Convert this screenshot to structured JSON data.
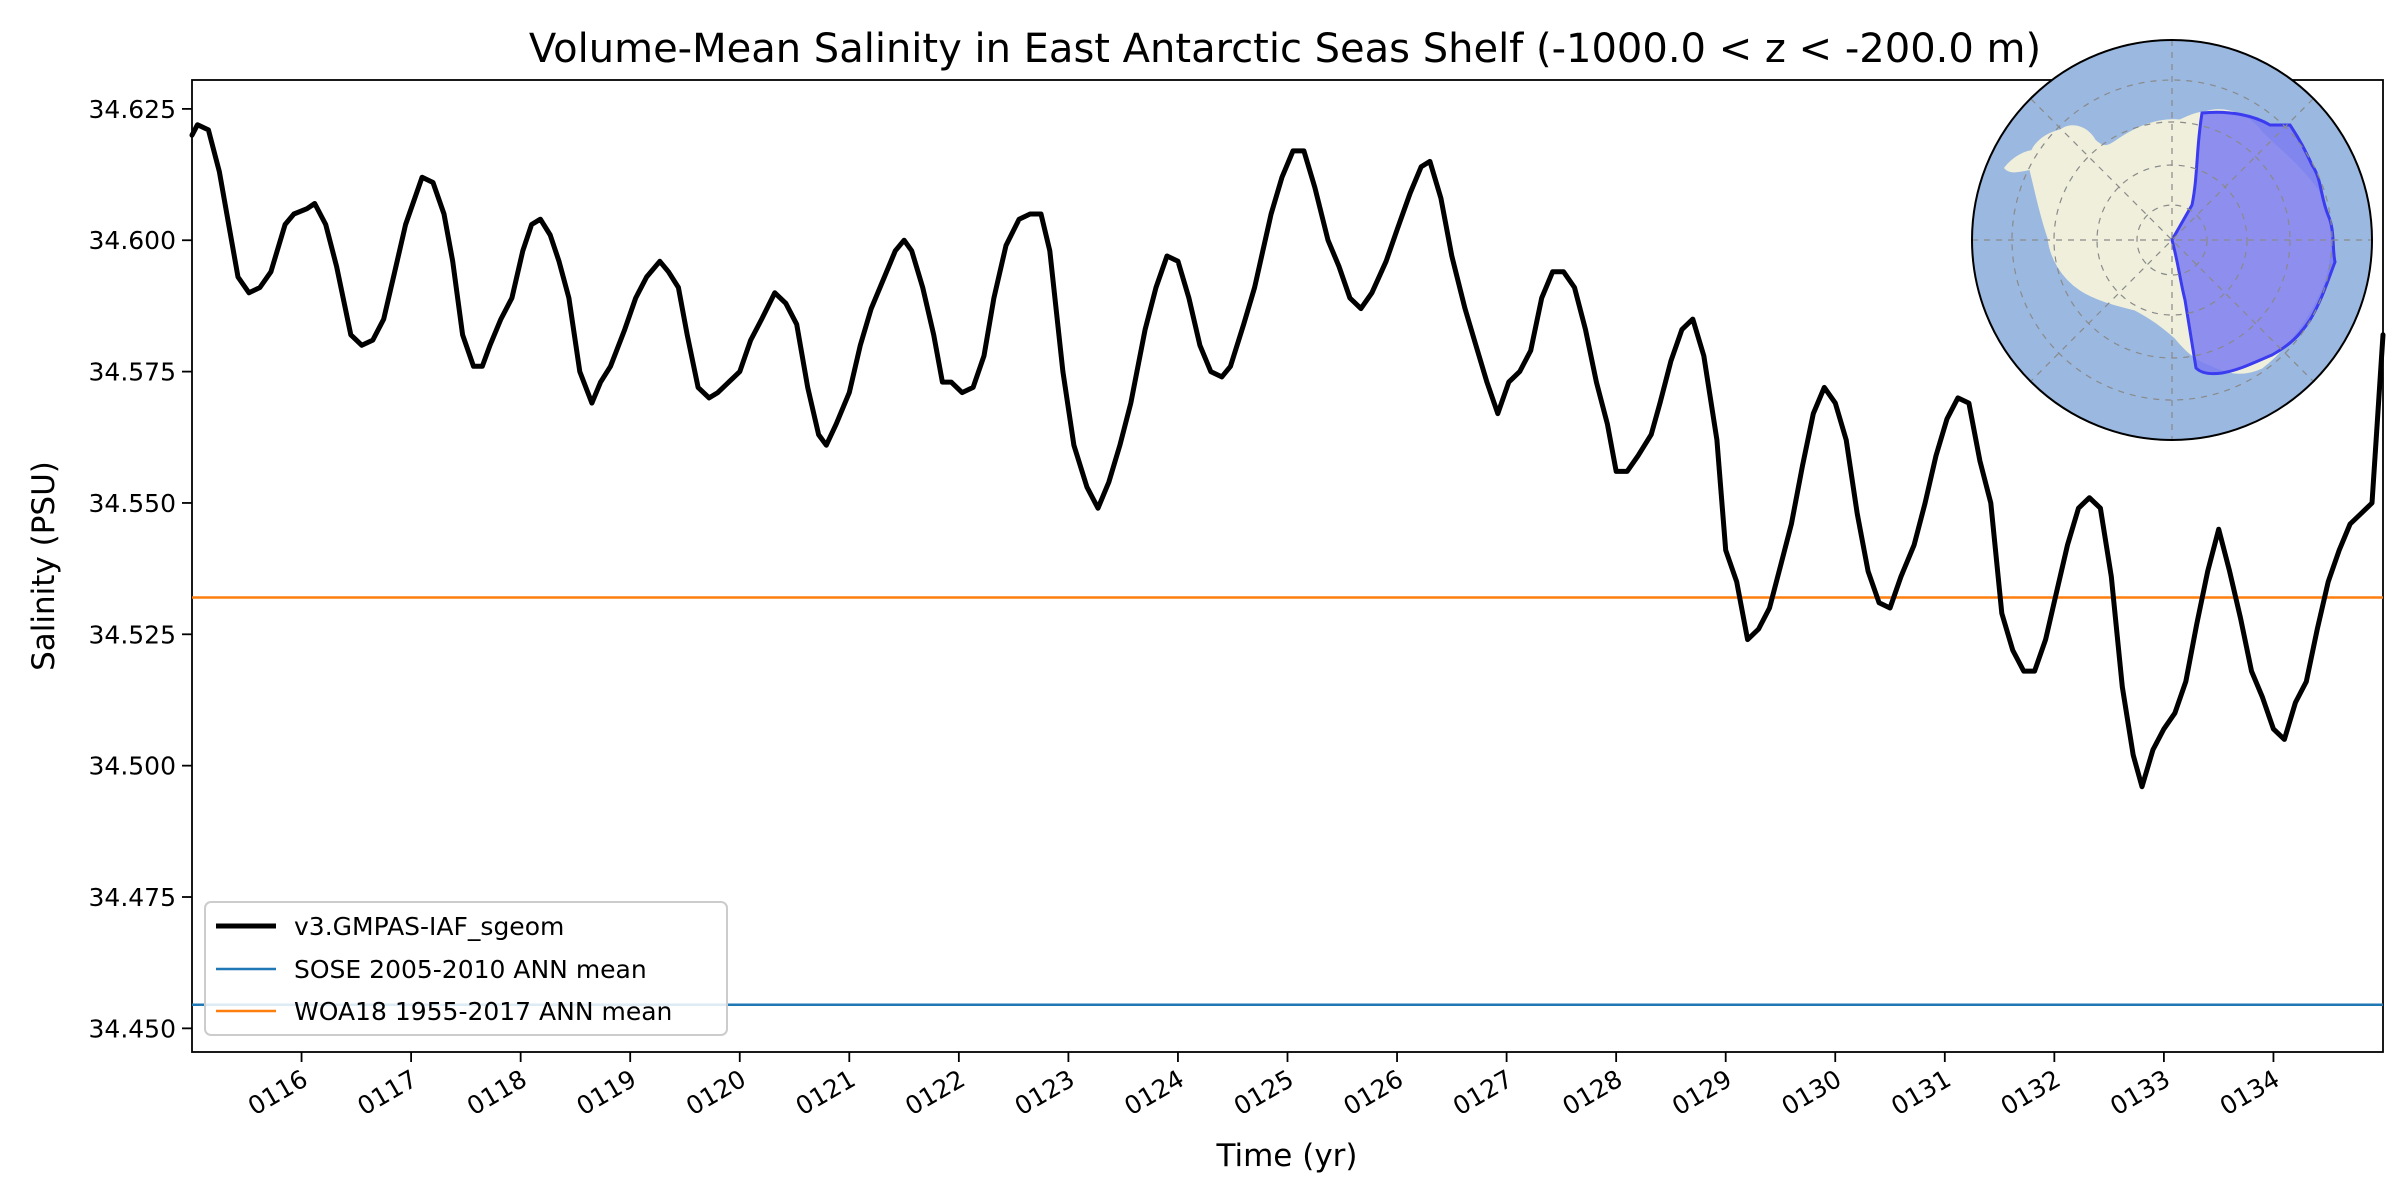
{
  "chart_data": {
    "type": "line",
    "title": "Volume-Mean Salinity in East Antarctic Seas Shelf (-1000.0 < z < -200.0 m)",
    "xlabel": "Time (yr)",
    "ylabel": "Salinity (PSU)",
    "xlim": [
      115.0,
      135.0
    ],
    "ylim": [
      34.4455,
      34.6305
    ],
    "x_ticks": [
      116,
      117,
      118,
      119,
      120,
      121,
      122,
      123,
      124,
      125,
      126,
      127,
      128,
      129,
      130,
      131,
      132,
      133,
      134
    ],
    "x_tick_labels": [
      "0116",
      "0117",
      "0118",
      "0119",
      "0120",
      "0121",
      "0122",
      "0123",
      "0124",
      "0125",
      "0126",
      "0127",
      "0128",
      "0129",
      "0130",
      "0131",
      "0132",
      "0133",
      "0134"
    ],
    "y_ticks": [
      34.45,
      34.475,
      34.5,
      34.525,
      34.55,
      34.575,
      34.6,
      34.625
    ],
    "y_tick_labels": [
      "34.450",
      "34.475",
      "34.500",
      "34.525",
      "34.550",
      "34.575",
      "34.600",
      "34.625"
    ],
    "grid": false,
    "legend_position": "lower-left",
    "series": [
      {
        "name": "v3.GMPAS-IAF_sgeom",
        "color": "#000000",
        "points": [
          [
            115.0,
            34.62
          ],
          [
            115.05,
            34.622
          ],
          [
            115.15,
            34.621
          ],
          [
            115.25,
            34.613
          ],
          [
            115.42,
            34.593
          ],
          [
            115.52,
            34.59
          ],
          [
            115.62,
            34.591
          ],
          [
            115.72,
            34.594
          ],
          [
            115.85,
            34.603
          ],
          [
            115.93,
            34.605
          ],
          [
            116.05,
            34.606
          ],
          [
            116.12,
            34.607
          ],
          [
            116.22,
            34.603
          ],
          [
            116.32,
            34.595
          ],
          [
            116.45,
            34.582
          ],
          [
            116.55,
            34.58
          ],
          [
            116.65,
            34.581
          ],
          [
            116.75,
            34.585
          ],
          [
            116.85,
            34.594
          ],
          [
            116.95,
            34.603
          ],
          [
            117.1,
            34.612
          ],
          [
            117.2,
            34.611
          ],
          [
            117.3,
            34.605
          ],
          [
            117.38,
            34.596
          ],
          [
            117.47,
            34.582
          ],
          [
            117.57,
            34.576
          ],
          [
            117.65,
            34.576
          ],
          [
            117.72,
            34.58
          ],
          [
            117.82,
            34.585
          ],
          [
            117.92,
            34.589
          ],
          [
            118.02,
            34.598
          ],
          [
            118.1,
            34.603
          ],
          [
            118.18,
            34.604
          ],
          [
            118.27,
            34.601
          ],
          [
            118.35,
            34.596
          ],
          [
            118.44,
            34.589
          ],
          [
            118.54,
            34.575
          ],
          [
            118.65,
            34.569
          ],
          [
            118.73,
            34.573
          ],
          [
            118.82,
            34.576
          ],
          [
            118.95,
            34.583
          ],
          [
            119.05,
            34.589
          ],
          [
            119.15,
            34.593
          ],
          [
            119.27,
            34.596
          ],
          [
            119.35,
            34.594
          ],
          [
            119.44,
            34.591
          ],
          [
            119.52,
            34.582
          ],
          [
            119.62,
            34.572
          ],
          [
            119.72,
            34.57
          ],
          [
            119.8,
            34.571
          ],
          [
            119.9,
            34.573
          ],
          [
            120.0,
            34.575
          ],
          [
            120.1,
            34.581
          ],
          [
            120.2,
            34.585
          ],
          [
            120.32,
            34.59
          ],
          [
            120.42,
            34.588
          ],
          [
            120.52,
            34.584
          ],
          [
            120.62,
            34.572
          ],
          [
            120.72,
            34.563
          ],
          [
            120.79,
            34.561
          ],
          [
            120.88,
            34.565
          ],
          [
            121.0,
            34.571
          ],
          [
            121.1,
            34.58
          ],
          [
            121.2,
            34.587
          ],
          [
            121.32,
            34.593
          ],
          [
            121.42,
            34.598
          ],
          [
            121.5,
            34.6
          ],
          [
            121.57,
            34.598
          ],
          [
            121.67,
            34.591
          ],
          [
            121.77,
            34.582
          ],
          [
            121.85,
            34.573
          ],
          [
            121.93,
            34.573
          ],
          [
            122.03,
            34.571
          ],
          [
            122.13,
            34.572
          ],
          [
            122.23,
            34.578
          ],
          [
            122.32,
            34.589
          ],
          [
            122.43,
            34.599
          ],
          [
            122.55,
            34.604
          ],
          [
            122.65,
            34.605
          ],
          [
            122.75,
            34.605
          ],
          [
            122.83,
            34.598
          ],
          [
            122.95,
            34.575
          ],
          [
            123.05,
            34.561
          ],
          [
            123.17,
            34.553
          ],
          [
            123.27,
            34.549
          ],
          [
            123.37,
            34.554
          ],
          [
            123.47,
            34.561
          ],
          [
            123.57,
            34.569
          ],
          [
            123.7,
            34.583
          ],
          [
            123.8,
            34.591
          ],
          [
            123.9,
            34.597
          ],
          [
            124.0,
            34.596
          ],
          [
            124.1,
            34.589
          ],
          [
            124.2,
            34.58
          ],
          [
            124.3,
            34.575
          ],
          [
            124.4,
            34.574
          ],
          [
            124.48,
            34.576
          ],
          [
            124.6,
            34.584
          ],
          [
            124.7,
            34.591
          ],
          [
            124.85,
            34.605
          ],
          [
            124.95,
            34.612
          ],
          [
            125.05,
            34.617
          ],
          [
            125.15,
            34.617
          ],
          [
            125.25,
            34.61
          ],
          [
            125.37,
            34.6
          ],
          [
            125.47,
            34.595
          ],
          [
            125.57,
            34.589
          ],
          [
            125.67,
            34.587
          ],
          [
            125.77,
            34.59
          ],
          [
            125.9,
            34.596
          ],
          [
            126.0,
            34.602
          ],
          [
            126.12,
            34.609
          ],
          [
            126.22,
            34.614
          ],
          [
            126.3,
            34.615
          ],
          [
            126.4,
            34.608
          ],
          [
            126.5,
            34.597
          ],
          [
            126.62,
            34.587
          ],
          [
            126.72,
            34.58
          ],
          [
            126.82,
            34.573
          ],
          [
            126.92,
            34.567
          ],
          [
            127.02,
            34.573
          ],
          [
            127.12,
            34.575
          ],
          [
            127.22,
            34.579
          ],
          [
            127.32,
            34.589
          ],
          [
            127.42,
            34.594
          ],
          [
            127.52,
            34.594
          ],
          [
            127.62,
            34.591
          ],
          [
            127.72,
            34.583
          ],
          [
            127.82,
            34.573
          ],
          [
            127.92,
            34.565
          ],
          [
            128.0,
            34.556
          ],
          [
            128.1,
            34.556
          ],
          [
            128.2,
            34.559
          ],
          [
            128.32,
            34.563
          ],
          [
            128.4,
            34.569
          ],
          [
            128.5,
            34.577
          ],
          [
            128.6,
            34.583
          ],
          [
            128.7,
            34.585
          ],
          [
            128.8,
            34.578
          ],
          [
            128.92,
            34.562
          ],
          [
            129.0,
            34.541
          ],
          [
            129.1,
            34.535
          ],
          [
            129.2,
            34.524
          ],
          [
            129.3,
            34.526
          ],
          [
            129.4,
            34.53
          ],
          [
            129.5,
            34.538
          ],
          [
            129.6,
            34.546
          ],
          [
            129.7,
            34.557
          ],
          [
            129.8,
            34.567
          ],
          [
            129.9,
            34.572
          ],
          [
            130.0,
            34.569
          ],
          [
            130.1,
            34.562
          ],
          [
            130.2,
            34.548
          ],
          [
            130.3,
            34.537
          ],
          [
            130.4,
            34.531
          ],
          [
            130.5,
            34.53
          ],
          [
            130.6,
            34.536
          ],
          [
            130.72,
            34.542
          ],
          [
            130.82,
            34.55
          ],
          [
            130.92,
            34.559
          ],
          [
            131.02,
            34.566
          ],
          [
            131.12,
            34.57
          ],
          [
            131.22,
            34.569
          ],
          [
            131.32,
            34.558
          ],
          [
            131.42,
            34.55
          ],
          [
            131.52,
            34.529
          ],
          [
            131.62,
            34.522
          ],
          [
            131.72,
            34.518
          ],
          [
            131.82,
            34.518
          ],
          [
            131.92,
            34.524
          ],
          [
            132.02,
            34.533
          ],
          [
            132.12,
            34.542
          ],
          [
            132.22,
            34.549
          ],
          [
            132.32,
            34.551
          ],
          [
            132.42,
            34.549
          ],
          [
            132.52,
            34.536
          ],
          [
            132.62,
            34.515
          ],
          [
            132.72,
            34.502
          ],
          [
            132.8,
            34.496
          ],
          [
            132.9,
            34.503
          ],
          [
            133.0,
            34.507
          ],
          [
            133.1,
            34.51
          ],
          [
            133.2,
            34.516
          ],
          [
            133.3,
            34.527
          ],
          [
            133.4,
            34.537
          ],
          [
            133.5,
            34.545
          ],
          [
            133.6,
            34.537
          ],
          [
            133.7,
            34.528
          ],
          [
            133.8,
            34.518
          ],
          [
            133.9,
            34.513
          ],
          [
            134.0,
            34.507
          ],
          [
            134.1,
            34.505
          ],
          [
            134.2,
            34.512
          ],
          [
            134.3,
            34.516
          ],
          [
            134.4,
            34.526
          ],
          [
            134.5,
            34.535
          ],
          [
            134.6,
            34.541
          ],
          [
            134.7,
            34.546
          ],
          [
            134.8,
            34.548
          ],
          [
            134.9,
            34.55
          ],
          [
            135.0,
            34.582
          ]
        ]
      },
      {
        "name": "SOSE 2005-2010 ANN mean",
        "color": "#1f77b4",
        "points": [
          [
            115.0,
            34.4545
          ],
          [
            135.0,
            34.4545
          ]
        ]
      },
      {
        "name": "WOA18 1955-2017 ANN mean",
        "color": "#ff7f0e",
        "points": [
          [
            115.0,
            34.532
          ],
          [
            135.0,
            34.532
          ]
        ]
      }
    ]
  },
  "inset_map": {
    "region": "East Antarctic Seas Shelf",
    "ocean_color": "#9ab8e0",
    "land_color": "#efefdc",
    "region_fill": "#7b7cf0",
    "region_edge": "#3b3bf0"
  }
}
